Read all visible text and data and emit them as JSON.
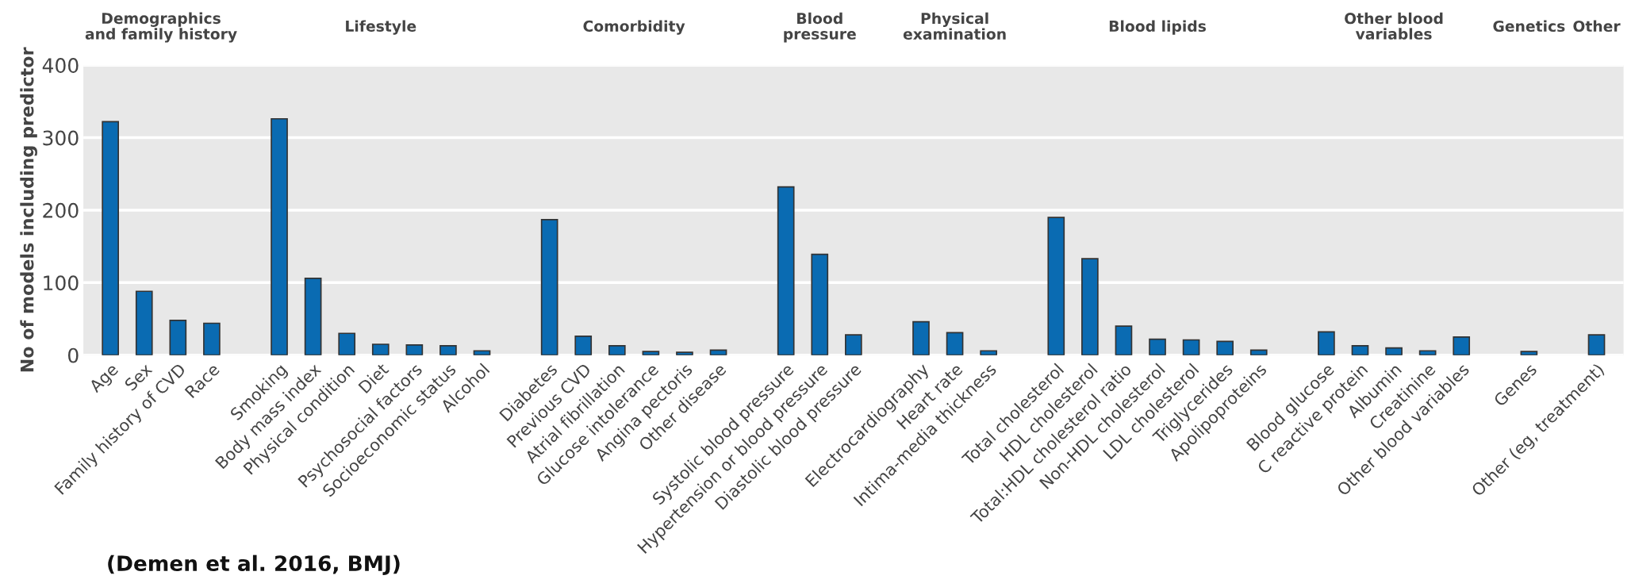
{
  "chart_data": {
    "type": "bar",
    "ylabel": "No of models including predictor",
    "categories": [
      "Age",
      "Sex",
      "Family history of CVD",
      "Race",
      null,
      "Smoking",
      "Body mass index",
      "Physical condition",
      "Diet",
      "Psychosocial factors",
      "Socioeconomic status",
      "Alcohol",
      null,
      "Diabetes",
      "Previous CVD",
      "Atrial fibrillation",
      "Glucose intolerance",
      "Angina pectoris",
      "Other disease",
      null,
      "Systolic blood pressure",
      "Hypertension or blood pressure",
      "Diastolic blood pressure",
      null,
      "Electrocardiography",
      "Heart rate",
      "Intima-media thickness",
      null,
      "Total cholesterol",
      "HDL cholesterol",
      "Total:HDL cholesterol ratio",
      "Non-HDL cholesterol",
      "LDL cholesterol",
      "Triglycerides",
      "Apolipoproteins",
      null,
      "Blood glucose",
      "C reactive protein",
      "Albumin",
      "Creatinine",
      "Other blood variables",
      null,
      "Genes",
      null,
      "Other (eg, treatment)"
    ],
    "values": [
      322,
      88,
      48,
      44,
      null,
      326,
      106,
      30,
      15,
      14,
      13,
      6,
      null,
      187,
      26,
      13,
      5,
      4,
      7,
      null,
      232,
      139,
      28,
      null,
      46,
      31,
      6,
      null,
      190,
      133,
      40,
      22,
      21,
      19,
      7,
      null,
      32,
      13,
      10,
      6,
      25,
      null,
      5,
      null,
      28
    ],
    "color": "#0a6bb2",
    "ylim": [
      0,
      400
    ],
    "yticks": [
      0,
      100,
      200,
      300,
      400
    ],
    "grid": "y",
    "annotations": [
      "Demographics\nand family history",
      "Lifestyle",
      "Comorbidity",
      "Blood\npressure",
      "Physical\nexamination",
      "Blood lipids",
      "Other blood\nvariables",
      "Genetics",
      "Other",
      "(Demen et al. 2016, BMJ)"
    ]
  }
}
